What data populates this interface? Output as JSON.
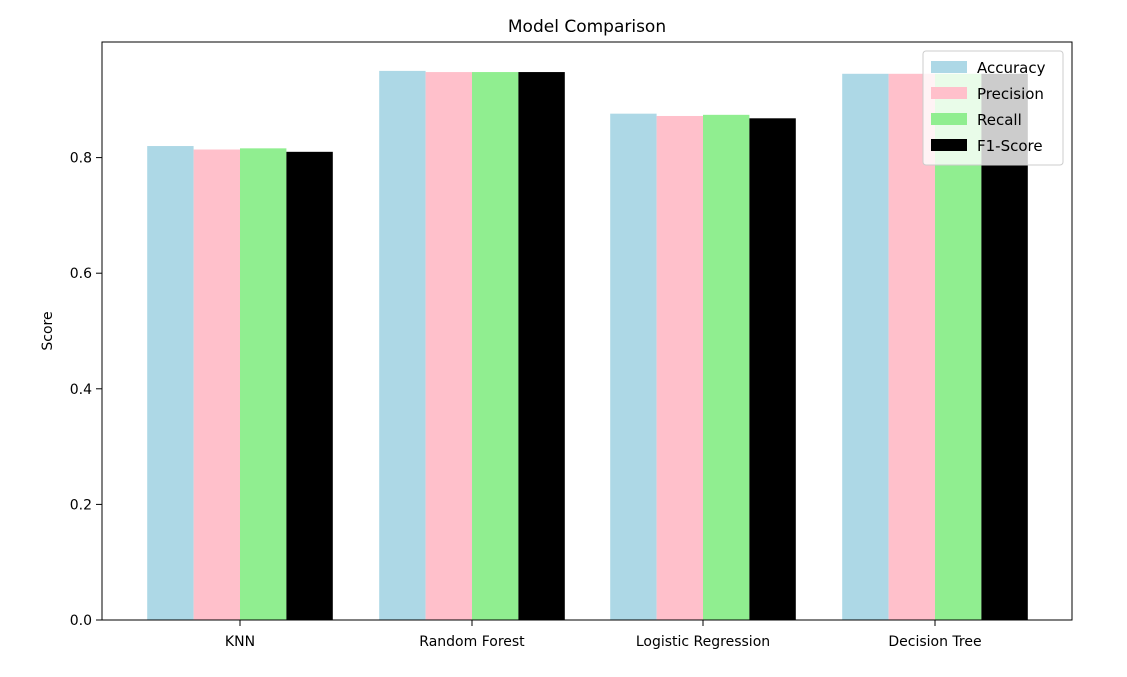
{
  "chart_data": {
    "type": "bar",
    "title": "Model Comparison",
    "xlabel": "",
    "ylabel": "Score",
    "ylim": [
      0,
      1.0
    ],
    "yticks": [
      0.0,
      0.2,
      0.4,
      0.6,
      0.8
    ],
    "ytick_labels": [
      "0.0",
      "0.2",
      "0.4",
      "0.6",
      "0.8"
    ],
    "categories": [
      "KNN",
      "Random Forest",
      "Logistic Regression",
      "Decision Tree"
    ],
    "series": [
      {
        "name": "Accuracy",
        "color": "#add8e6",
        "values": [
          0.82,
          0.95,
          0.876,
          0.945
        ]
      },
      {
        "name": "Precision",
        "color": "#ffc0cb",
        "values": [
          0.814,
          0.948,
          0.872,
          0.945
        ]
      },
      {
        "name": "Recall",
        "color": "#90ee90",
        "values": [
          0.816,
          0.948,
          0.874,
          0.945
        ]
      },
      {
        "name": "F1-Score",
        "color": "#000000",
        "values": [
          0.81,
          0.948,
          0.868,
          0.945
        ]
      }
    ],
    "legend_position": "top-right",
    "grid": false
  }
}
